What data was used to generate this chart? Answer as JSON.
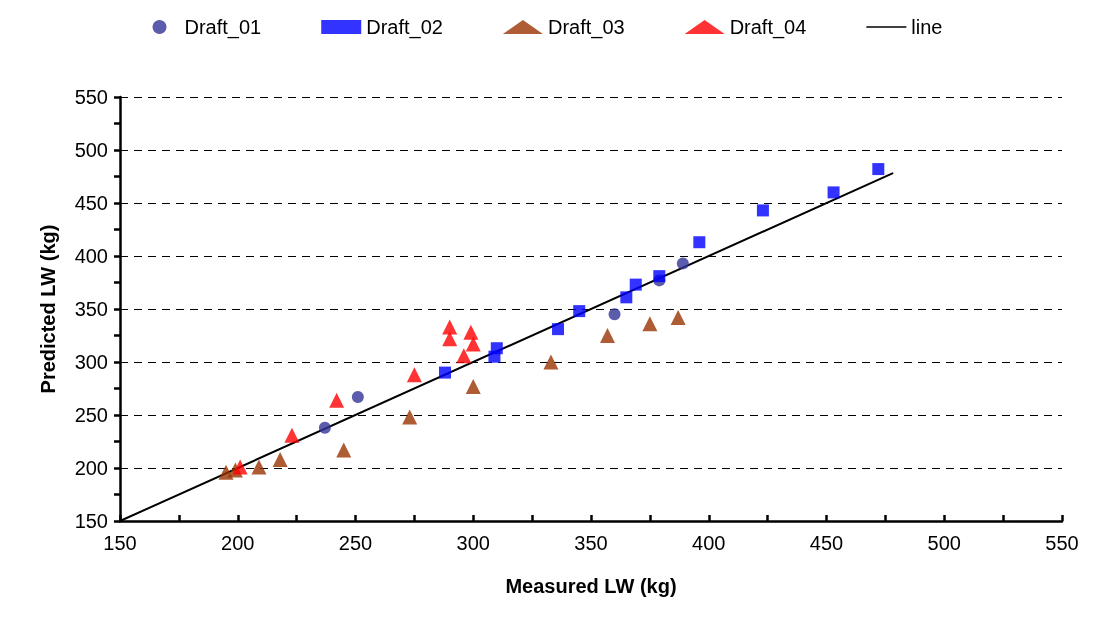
{
  "chart_data": {
    "type": "scatter",
    "xlabel": "Measured LW (kg)",
    "ylabel": "Predicted LW (kg)",
    "xlim": [
      150,
      550
    ],
    "ylim": [
      150,
      550
    ],
    "xticks": [
      150,
      {
        "value": 175,
        "label": null
      },
      200,
      {
        "value": 225,
        "label": null
      },
      250,
      {
        "value": 275,
        "label": null
      },
      300,
      {
        "value": 325,
        "label": null
      },
      350,
      {
        "value": 375,
        "label": null
      },
      400,
      {
        "value": 425,
        "label": null
      },
      450,
      {
        "value": 475,
        "label": null
      },
      500,
      {
        "value": 525,
        "label": null
      },
      550
    ],
    "yticks": [
      150,
      {
        "value": 175,
        "label": null
      },
      200,
      {
        "value": 225,
        "label": null
      },
      250,
      {
        "value": 275,
        "label": null
      },
      300,
      {
        "value": 325,
        "label": null
      },
      350,
      {
        "value": 375,
        "label": null
      },
      400,
      {
        "value": 425,
        "label": null
      },
      450,
      {
        "value": 475,
        "label": null
      },
      500,
      {
        "value": 525,
        "label": null
      },
      550
    ],
    "grid": "y",
    "legend": "top",
    "series": [
      {
        "name": "Draft_01",
        "color": "#333399",
        "marker": "circle",
        "x": [
          237,
          251,
          360,
          379,
          389
        ],
        "values": [
          238,
          267,
          345,
          377,
          393
        ]
      },
      {
        "name": "Draft_02",
        "color": "#0000ff",
        "marker": "square",
        "x": [
          288,
          309,
          310,
          336,
          345,
          365,
          369,
          379,
          396,
          423,
          453,
          472
        ],
        "values": [
          290,
          305,
          313,
          331,
          348,
          361,
          373,
          381,
          413,
          443,
          460,
          482
        ]
      },
      {
        "name": "Draft_03",
        "color": "#993300",
        "marker": "triangle",
        "x": [
          195,
          199,
          209,
          218,
          245,
          273,
          300,
          333,
          357,
          375,
          387
        ],
        "values": [
          196,
          198,
          201,
          208,
          217,
          248,
          277,
          300,
          325,
          336,
          342
        ]
      },
      {
        "name": "Draft_04",
        "color": "#ff0000",
        "marker": "triangle",
        "x": [
          201,
          223,
          242,
          275,
          290,
          290,
          299,
          300,
          296
        ],
        "values": [
          201,
          231,
          264,
          288,
          333,
          322,
          328,
          317,
          306
        ]
      },
      {
        "name": "line",
        "type": "line",
        "color": "#000000",
        "marker": "none",
        "x": [
          150,
          478
        ],
        "values": [
          150,
          478
        ]
      }
    ]
  }
}
